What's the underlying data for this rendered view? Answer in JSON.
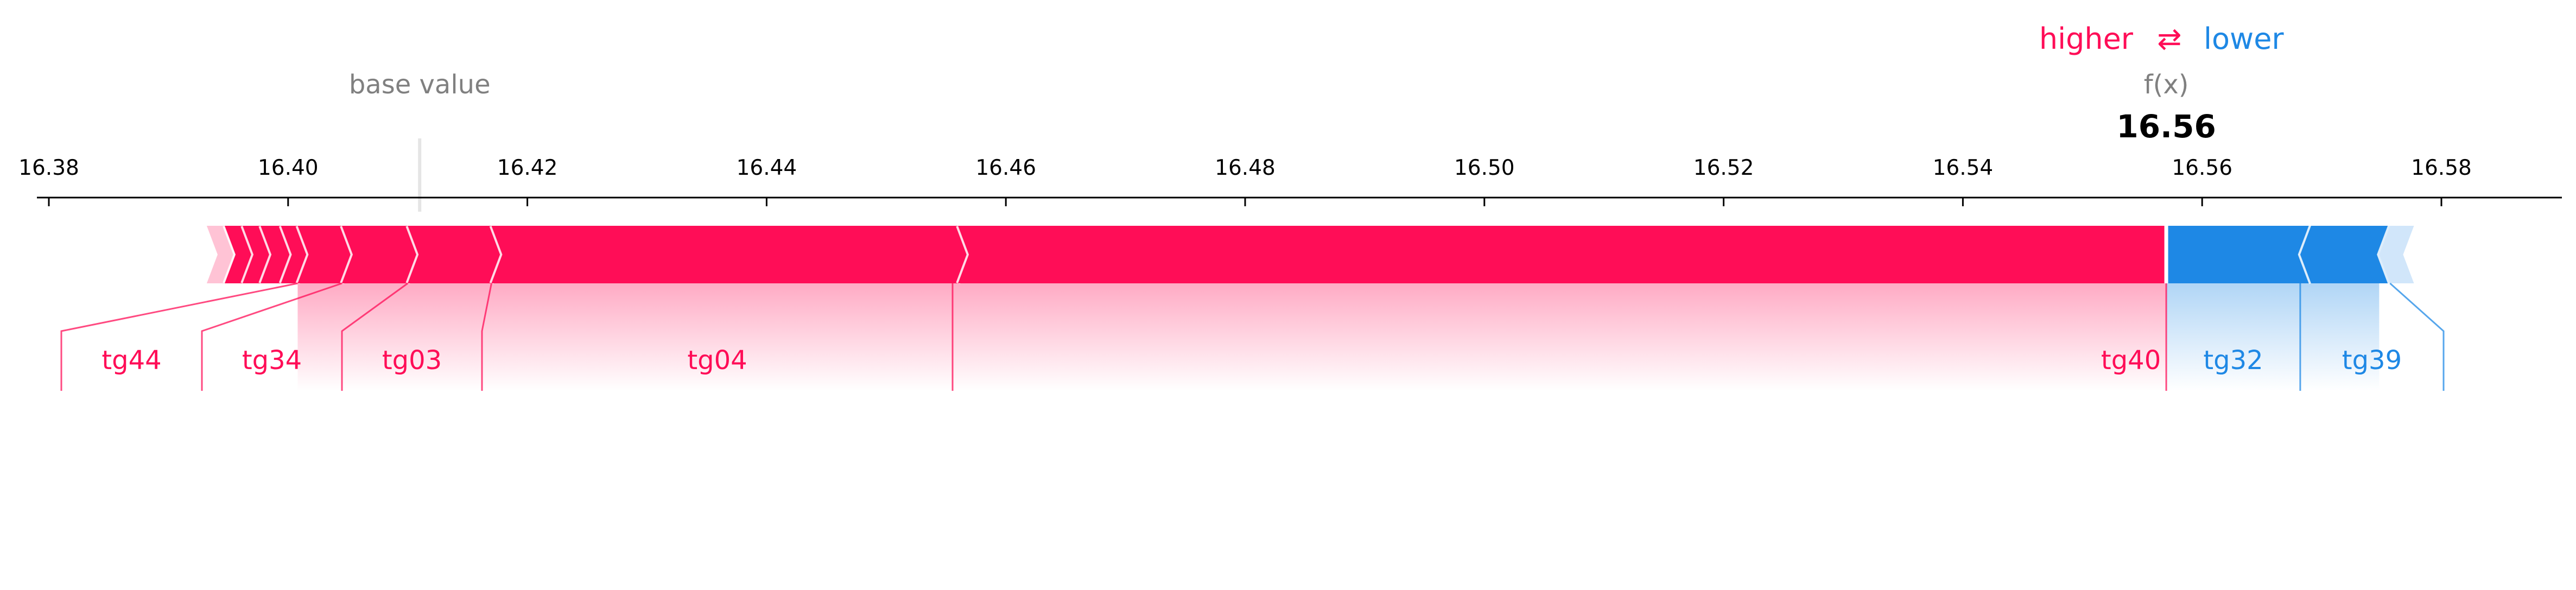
{
  "chart_data": {
    "type": "force-plot",
    "title": "",
    "legend": {
      "higher_label": "higher",
      "arrow_glyph": "⇄",
      "lower_label": "lower",
      "placement": "top-right"
    },
    "base_value_label": "base value",
    "output_label": "f(x)",
    "output_value_text": "16.56",
    "base_value": 16.411,
    "output_value": 16.557,
    "x_range": [
      16.376,
      16.589
    ],
    "ticks": [
      16.38,
      16.4,
      16.42,
      16.44,
      16.46,
      16.48,
      16.5,
      16.52,
      16.54,
      16.56,
      16.58
    ],
    "tick_labels": [
      "16.38",
      "16.40",
      "16.42",
      "16.44",
      "16.46",
      "16.48",
      "16.50",
      "16.52",
      "16.54",
      "16.56",
      "16.58"
    ],
    "positive_segments": [
      {
        "start": 16.3932,
        "end": 16.3947,
        "label": ""
      },
      {
        "start": 16.3947,
        "end": 16.3962,
        "label": ""
      },
      {
        "start": 16.3962,
        "end": 16.3977,
        "label": ""
      },
      {
        "start": 16.3977,
        "end": 16.3994,
        "label": ""
      },
      {
        "start": 16.3994,
        "end": 16.4008,
        "label": ""
      },
      {
        "start": 16.4008,
        "end": 16.4045,
        "label": "tg44"
      },
      {
        "start": 16.4045,
        "end": 16.41,
        "label": "tg34"
      },
      {
        "start": 16.41,
        "end": 16.417,
        "label": "tg03"
      },
      {
        "start": 16.417,
        "end": 16.456,
        "label": "tg04"
      },
      {
        "start": 16.456,
        "end": 16.557,
        "label": "tg40"
      }
    ],
    "negative_segments": [
      {
        "start": 16.557,
        "end": 16.5682,
        "label": "tg32"
      },
      {
        "start": 16.5682,
        "end": 16.5748,
        "label": "tg39"
      },
      {
        "start": 16.5748,
        "end": 16.5768,
        "label": ""
      }
    ],
    "colors": {
      "positive": "#ff0d57",
      "negative": "#1e88e5",
      "positive_light": "#ffc3d5",
      "negative_light": "#d1e6fa",
      "muted_text": "#808080"
    }
  }
}
